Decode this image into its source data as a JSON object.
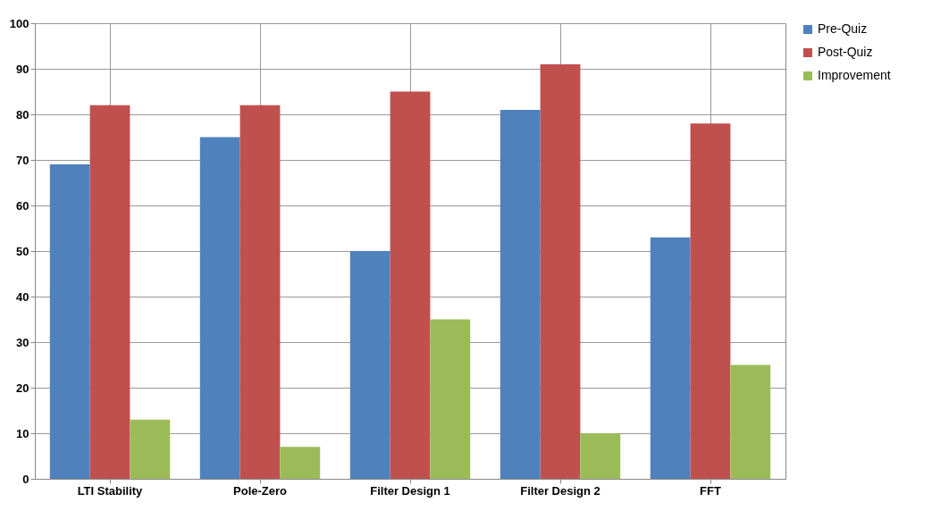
{
  "chart_data": {
    "type": "bar",
    "categories": [
      "LTI Stability",
      "Pole-Zero",
      "Filter Design 1",
      "Filter Design 2",
      "FFT"
    ],
    "series": [
      {
        "name": "Pre-Quiz",
        "color": "#4f81bd",
        "values": [
          69,
          75,
          50,
          81,
          53
        ]
      },
      {
        "name": "Post-Quiz",
        "color": "#c0504d",
        "values": [
          82,
          82,
          85,
          91,
          78
        ]
      },
      {
        "name": "Improvement",
        "color": "#9bbb59",
        "values": [
          13,
          7,
          35,
          10,
          25
        ]
      }
    ],
    "ylim": [
      0,
      100
    ],
    "yticks": [
      0,
      10,
      20,
      30,
      40,
      50,
      60,
      70,
      80,
      90,
      100
    ],
    "grid": true,
    "legend": "right"
  }
}
